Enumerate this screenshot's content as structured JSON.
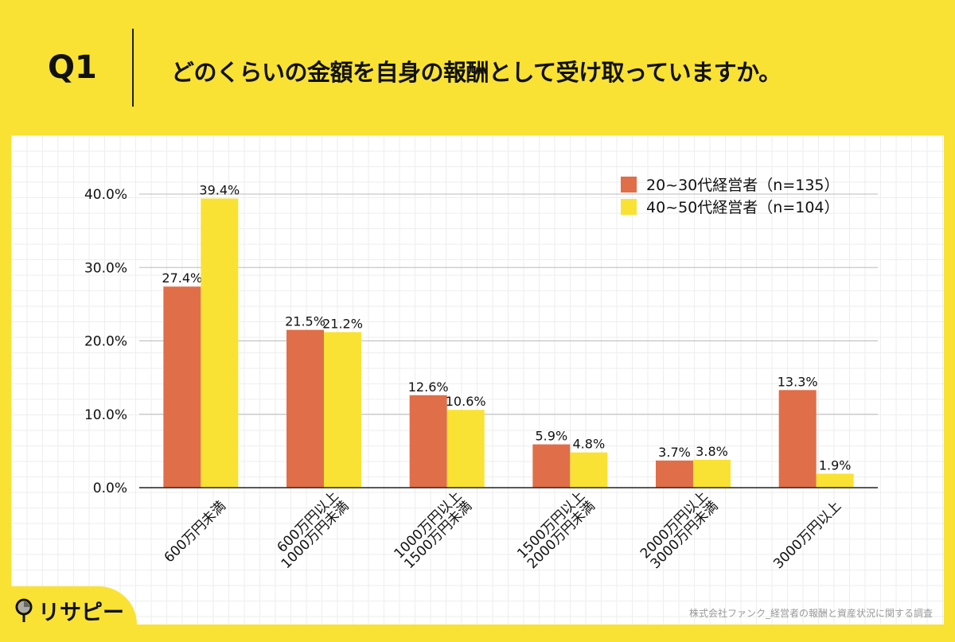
{
  "header": {
    "question": "Q1",
    "title": "どのくらいの金額を自身の報酬として受け取っていますか。"
  },
  "logo": {
    "text": "リサピー"
  },
  "source": "株式会社ファンク_経営者の報酬と資産状況に関する調査",
  "colors": {
    "background": "#F9E233",
    "series1": "#E06E48",
    "series2": "#F9E233"
  },
  "chart_data": {
    "type": "bar",
    "categories": [
      "600万円未満",
      "600万円以上\n1000万円未満",
      "1000万円以上\n1500万円未満",
      "1500万円以上\n2000万円未満",
      "2000万円以上\n3000万円未満",
      "3000万円以上"
    ],
    "series": [
      {
        "name": "20~30代経営者（n=135）",
        "values": [
          27.4,
          21.5,
          12.6,
          5.9,
          3.7,
          13.3
        ],
        "labels": [
          "27.4%",
          "21.5%",
          "12.6%",
          "5.9%",
          "3.7%",
          "13.3%"
        ]
      },
      {
        "name": "40~50代経営者（n=104）",
        "values": [
          39.4,
          21.2,
          10.6,
          4.8,
          3.8,
          1.9
        ],
        "labels": [
          "39.4%",
          "21.2%",
          "10.6%",
          "4.8%",
          "3.8%",
          "1.9%"
        ]
      }
    ],
    "yticks": [
      "0.0%",
      "10.0%",
      "20.0%",
      "30.0%",
      "40.0%"
    ],
    "ylim": [
      0,
      40
    ],
    "grid": true,
    "legend": "top-right"
  }
}
